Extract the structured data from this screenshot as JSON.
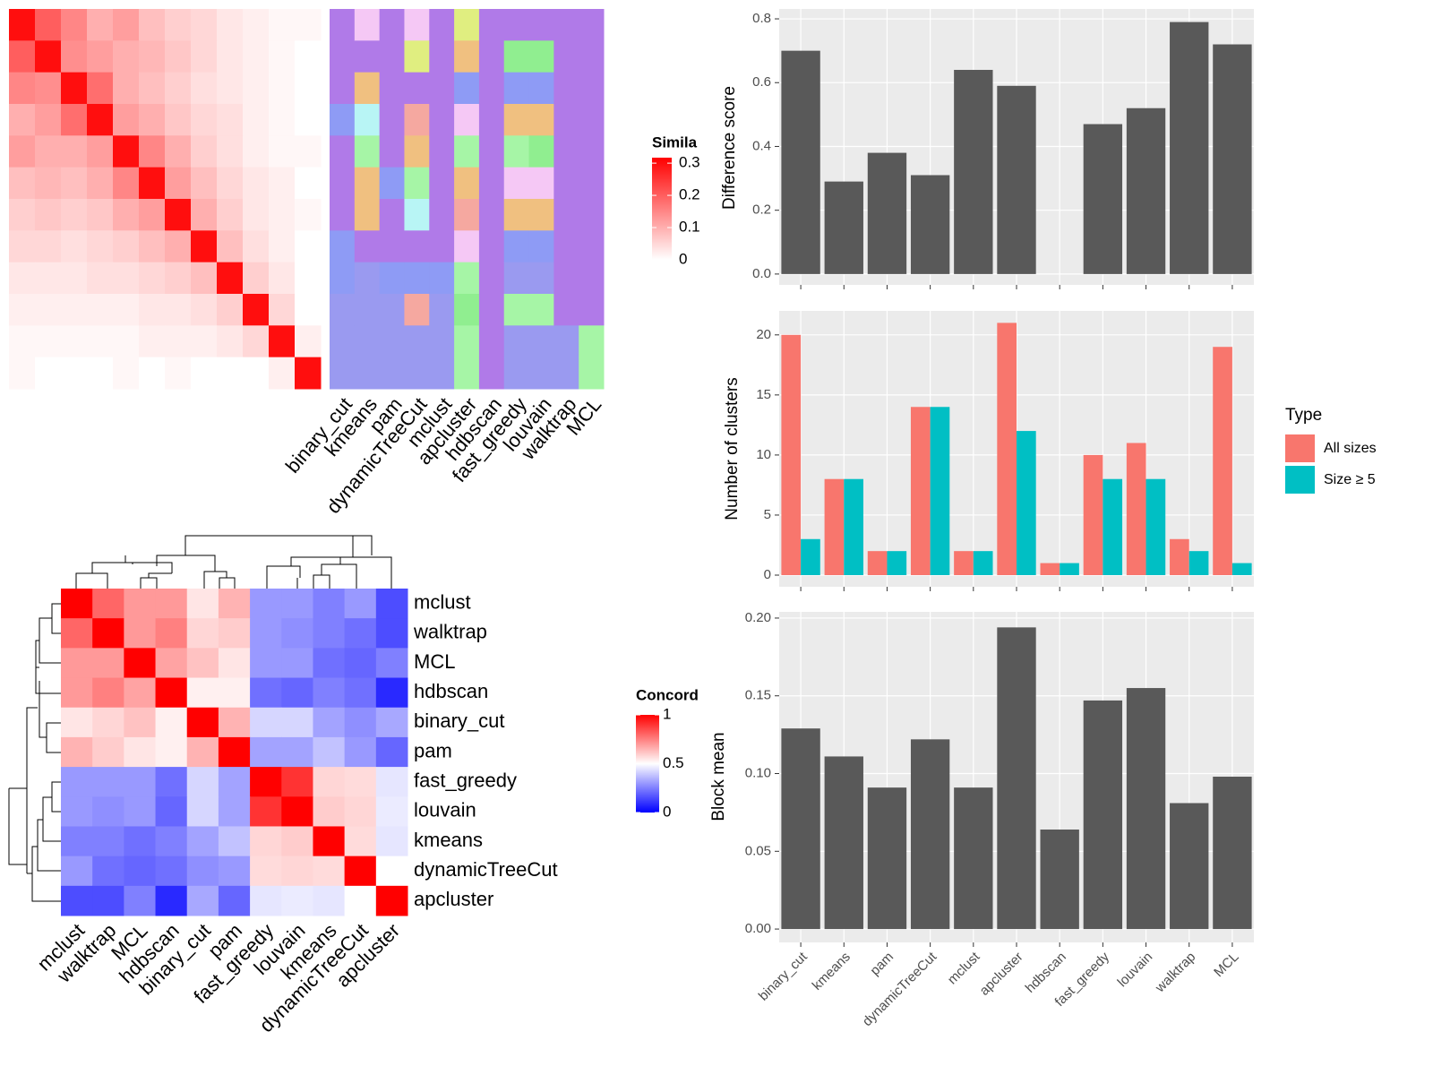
{
  "chart_data": [
    {
      "type": "heatmap",
      "legend_title": "Simila",
      "clim": [
        0,
        0.317
      ],
      "legend_ticks": [
        0,
        0.1,
        0.2,
        0.3
      ],
      "colors": [
        "#ffffff",
        "#ff0000"
      ],
      "matrix": [
        [
          0.3,
          0.2,
          0.15,
          0.1,
          0.12,
          0.08,
          0.06,
          0.05,
          0.03,
          0.02,
          0.01,
          0.01
        ],
        [
          0.2,
          0.3,
          0.14,
          0.12,
          0.1,
          0.09,
          0.07,
          0.05,
          0.03,
          0.02,
          0.01,
          0
        ],
        [
          0.15,
          0.14,
          0.3,
          0.18,
          0.1,
          0.08,
          0.06,
          0.04,
          0.03,
          0.02,
          0.01,
          0
        ],
        [
          0.1,
          0.12,
          0.18,
          0.3,
          0.12,
          0.1,
          0.07,
          0.05,
          0.04,
          0.02,
          0.01,
          0
        ],
        [
          0.12,
          0.1,
          0.1,
          0.12,
          0.3,
          0.15,
          0.1,
          0.06,
          0.04,
          0.02,
          0.01,
          0.01
        ],
        [
          0.08,
          0.09,
          0.08,
          0.1,
          0.15,
          0.3,
          0.12,
          0.08,
          0.05,
          0.03,
          0.02,
          0
        ],
        [
          0.06,
          0.07,
          0.06,
          0.07,
          0.1,
          0.12,
          0.3,
          0.1,
          0.06,
          0.03,
          0.02,
          0.01
        ],
        [
          0.05,
          0.05,
          0.04,
          0.05,
          0.06,
          0.08,
          0.1,
          0.3,
          0.08,
          0.04,
          0.02,
          0
        ],
        [
          0.03,
          0.03,
          0.03,
          0.04,
          0.04,
          0.05,
          0.06,
          0.08,
          0.3,
          0.06,
          0.03,
          0
        ],
        [
          0.02,
          0.02,
          0.02,
          0.02,
          0.02,
          0.03,
          0.03,
          0.04,
          0.06,
          0.3,
          0.05,
          0
        ],
        [
          0.01,
          0.01,
          0.01,
          0.01,
          0.01,
          0.02,
          0.02,
          0.02,
          0.03,
          0.05,
          0.3,
          0.02
        ],
        [
          0.01,
          0,
          0,
          0,
          0.01,
          0,
          0.01,
          0,
          0,
          0,
          0.02,
          0.3
        ]
      ]
    },
    {
      "type": "label-heatmap",
      "columns": [
        "binary_cut",
        "kmeans",
        "pam",
        "dynamicTreeCut",
        "mclust",
        "apcluster",
        "hdbscan",
        "fast_greedy",
        "louvain",
        "walktrap",
        "MCL"
      ],
      "palette": [
        "#b07ae8",
        "#8e9bf5",
        "#f0c080",
        "#a6f5a6",
        "#f5c8f5",
        "#b8f5f5",
        "#e0ee80",
        "#f5a8a0",
        "#9a9af0",
        "#90ee90"
      ],
      "matrix": [
        [
          0,
          0,
          0,
          1,
          0,
          0,
          0,
          1,
          1,
          8,
          8,
          8
        ],
        [
          4,
          0,
          2,
          5,
          3,
          2,
          2,
          0,
          8,
          8,
          8,
          8
        ],
        [
          0,
          0,
          0,
          0,
          0,
          1,
          0,
          0,
          1,
          8,
          8,
          8
        ],
        [
          4,
          6,
          0,
          7,
          2,
          3,
          5,
          0,
          1,
          7,
          8,
          8
        ],
        [
          0,
          0,
          0,
          0,
          0,
          0,
          0,
          0,
          1,
          8,
          8,
          8
        ],
        [
          6,
          2,
          1,
          4,
          3,
          2,
          7,
          4,
          3,
          9,
          3,
          3
        ],
        [
          0,
          0,
          0,
          0,
          0,
          0,
          0,
          0,
          0,
          0,
          0,
          0
        ],
        [
          0,
          9,
          1,
          2,
          3,
          4,
          2,
          1,
          8,
          3,
          8,
          8
        ],
        [
          0,
          9,
          1,
          2,
          9,
          4,
          2,
          1,
          8,
          3,
          8,
          8
        ],
        [
          0,
          0,
          0,
          0,
          0,
          0,
          0,
          0,
          0,
          0,
          8,
          8
        ],
        [
          0,
          0,
          0,
          0,
          0,
          0,
          0,
          0,
          0,
          0,
          3,
          3
        ]
      ]
    },
    {
      "type": "heatmap",
      "legend_title": "Concord",
      "clim": [
        0,
        1
      ],
      "legend_ticks": [
        0,
        0.5,
        1
      ],
      "colors": [
        "#0000ff",
        "#ffffff",
        "#ff0000"
      ],
      "categories": [
        "mclust",
        "walktrap",
        "MCL",
        "hdbscan",
        "binary_cut",
        "pam",
        "fast_greedy",
        "louvain",
        "kmeans",
        "dynamicTreeCut",
        "apcluster"
      ],
      "matrix": [
        [
          1,
          0.8,
          0.7,
          0.7,
          0.55,
          0.65,
          0.3,
          0.3,
          0.25,
          0.3,
          0.15
        ],
        [
          0.8,
          1,
          0.7,
          0.75,
          0.58,
          0.6,
          0.3,
          0.28,
          0.25,
          0.22,
          0.15
        ],
        [
          0.7,
          0.7,
          1,
          0.68,
          0.62,
          0.55,
          0.3,
          0.3,
          0.22,
          0.2,
          0.25
        ],
        [
          0.7,
          0.75,
          0.68,
          1,
          0.53,
          0.53,
          0.22,
          0.2,
          0.25,
          0.22,
          0.08
        ],
        [
          0.55,
          0.58,
          0.62,
          0.53,
          1,
          0.65,
          0.42,
          0.42,
          0.32,
          0.28,
          0.33
        ],
        [
          0.65,
          0.6,
          0.55,
          0.53,
          0.65,
          1,
          0.32,
          0.32,
          0.38,
          0.3,
          0.2
        ],
        [
          0.3,
          0.3,
          0.3,
          0.22,
          0.42,
          0.32,
          1,
          0.9,
          0.58,
          0.57,
          0.45
        ],
        [
          0.3,
          0.28,
          0.3,
          0.2,
          0.42,
          0.32,
          0.9,
          1,
          0.6,
          0.58,
          0.46
        ],
        [
          0.25,
          0.25,
          0.22,
          0.25,
          0.32,
          0.38,
          0.58,
          0.6,
          1,
          0.57,
          0.45
        ],
        [
          0.3,
          0.22,
          0.2,
          0.22,
          0.28,
          0.3,
          0.57,
          0.58,
          0.57,
          1,
          0.5
        ],
        [
          0.15,
          0.15,
          0.25,
          0.08,
          0.33,
          0.2,
          0.45,
          0.46,
          0.45,
          0.5,
          1
        ]
      ]
    },
    {
      "type": "bar",
      "y_label": "Difference score",
      "color": "#595959",
      "values": [
        0.7,
        0.29,
        0.38,
        0.31,
        0.64,
        0.59,
        null,
        0.47,
        0.52,
        0.79,
        0.72
      ],
      "ylim": [
        -0.034,
        0.831
      ],
      "yticks": [
        {
          "value": 0,
          "label": "0.0"
        },
        0.2,
        0.4,
        0.6,
        0.8
      ]
    },
    {
      "type": "grouped-bar",
      "y_label": "Number of clusters",
      "legend_title": "Type",
      "series": [
        {
          "name": "All sizes",
          "color": "#f8766d",
          "values": [
            20,
            8,
            2,
            14,
            2,
            21,
            1,
            10,
            11,
            3,
            19
          ]
        },
        {
          "name": "Size ≥ 5",
          "color": "#00bfc4",
          "values": [
            3,
            8,
            2,
            14,
            2,
            12,
            1,
            8,
            8,
            2,
            1
          ]
        }
      ],
      "ylim": [
        -0.97,
        22.0
      ],
      "yticks": [
        0,
        5,
        10,
        15,
        20
      ]
    },
    {
      "type": "bar",
      "y_label": "Block mean",
      "color": "#595959",
      "categories": [
        "binary_cut",
        "kmeans",
        "pam",
        "dynamicTreeCut",
        "mclust",
        "apcluster",
        "hdbscan",
        "fast_greedy",
        "louvain",
        "walktrap",
        "MCL"
      ],
      "values": [
        0.129,
        0.111,
        0.091,
        0.122,
        0.091,
        0.194,
        0.064,
        0.147,
        0.155,
        0.081,
        0.098
      ],
      "ylim": [
        -0.0086,
        0.204
      ],
      "yticks": [
        {
          "value": 0,
          "label": "0.00"
        },
        {
          "value": 0.05,
          "label": "0.05"
        },
        {
          "value": 0.1,
          "label": "0.10"
        },
        {
          "value": 0.15,
          "label": "0.15"
        },
        {
          "value": 0.2,
          "label": "0.20"
        }
      ]
    }
  ]
}
